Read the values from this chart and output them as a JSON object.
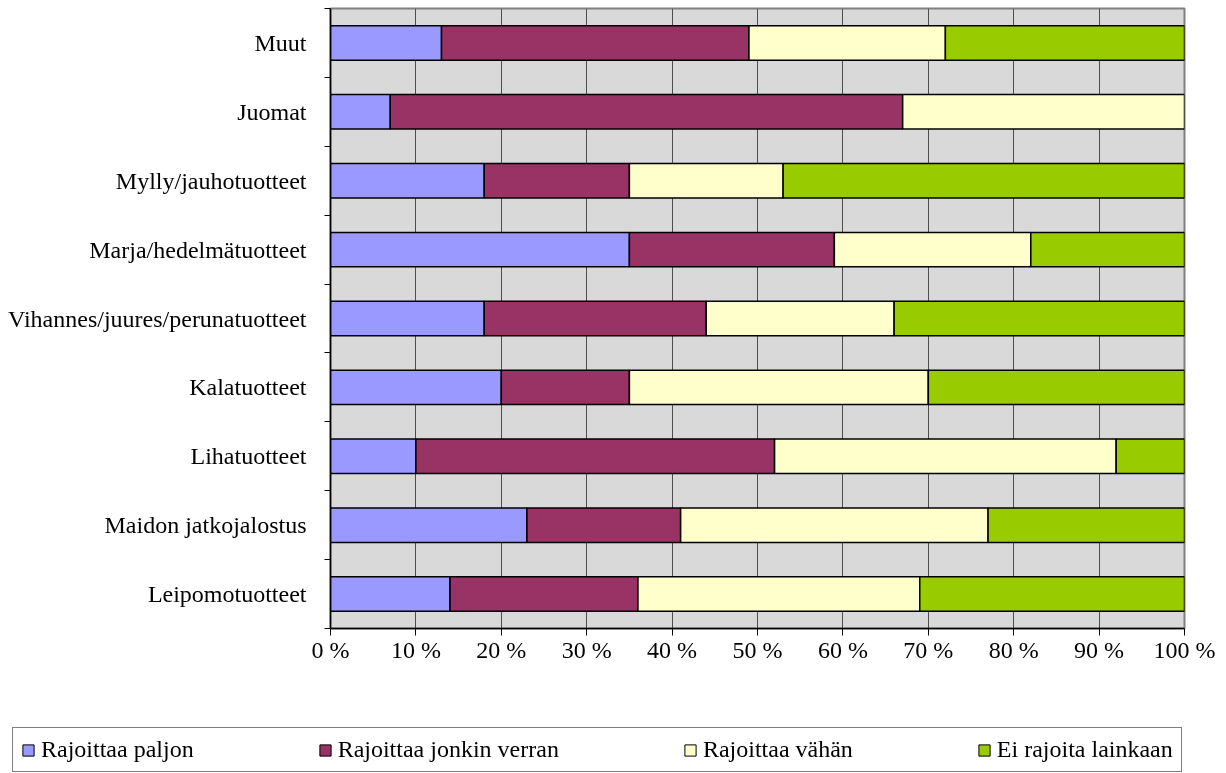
{
  "chart_data": {
    "type": "bar",
    "orientation": "horizontal",
    "stacked": true,
    "categories": [
      "Muut",
      "Juomat",
      "Mylly/jauhotuotteet",
      "Marja/hedelmätuotteet",
      "Vihannes/juures/perunatuotteet",
      "Kalatuotteet",
      "Lihatuotteet",
      "Maidon jatkojalostus",
      "Leipomotuotteet"
    ],
    "series": [
      {
        "name": "Rajoittaa paljon",
        "color": "#9999ff",
        "values": [
          13,
          7,
          18,
          35,
          18,
          20,
          10,
          23,
          14
        ]
      },
      {
        "name": "Rajoittaa jonkin verran",
        "color": "#993366",
        "values": [
          36,
          60,
          17,
          24,
          26,
          15,
          42,
          18,
          22
        ]
      },
      {
        "name": "Rajoittaa vähän",
        "color": "#ffffcc",
        "values": [
          23,
          33,
          18,
          23,
          22,
          35,
          40,
          36,
          33
        ]
      },
      {
        "name": "Ei rajoita lainkaan",
        "color": "#99cc00",
        "values": [
          28,
          null,
          47,
          18,
          34,
          30,
          8,
          23,
          31
        ]
      }
    ],
    "xlim": [
      0,
      100
    ],
    "xticks": [
      {
        "value": 0,
        "label": "0 %"
      },
      {
        "value": 10,
        "label": "10 %"
      },
      {
        "value": 20,
        "label": "20 %"
      },
      {
        "value": 30,
        "label": "30 %"
      },
      {
        "value": 40,
        "label": "40 %"
      },
      {
        "value": 50,
        "label": "50 %"
      },
      {
        "value": 60,
        "label": "60 %"
      },
      {
        "value": 70,
        "label": "70 %"
      },
      {
        "value": 80,
        "label": "80 %"
      },
      {
        "value": 90,
        "label": "90 %"
      },
      {
        "value": 100,
        "label": "100 %"
      }
    ],
    "grid": "x",
    "legend": "bottom"
  }
}
